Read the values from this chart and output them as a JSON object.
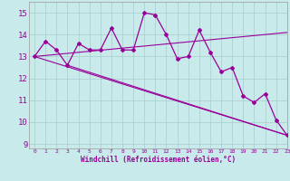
{
  "x": [
    0,
    1,
    2,
    3,
    4,
    5,
    6,
    7,
    8,
    9,
    10,
    11,
    12,
    13,
    14,
    15,
    16,
    17,
    18,
    19,
    20,
    21,
    22,
    23
  ],
  "y_main": [
    13.0,
    13.7,
    13.3,
    12.6,
    13.6,
    13.3,
    13.3,
    14.3,
    13.3,
    13.3,
    15.0,
    14.9,
    14.0,
    12.9,
    13.0,
    14.2,
    13.2,
    12.3,
    12.5,
    11.2,
    10.9,
    11.3,
    10.1,
    9.4
  ],
  "line_up": {
    "x0": 0,
    "y0": 13.0,
    "x1": 23,
    "y1": 14.1
  },
  "line_down1": {
    "x0": 0,
    "y0": 13.0,
    "x1": 23,
    "y1": 9.4
  },
  "line_down2": {
    "x0": 3,
    "y0": 12.6,
    "x1": 23,
    "y1": 9.4
  },
  "color": "#990099",
  "bg_color": "#c8eaea",
  "grid_color": "#a8cccc",
  "xlabel": "Windchill (Refroidissement éolien,°C)",
  "ylim": [
    8.8,
    15.5
  ],
  "xlim": [
    -0.5,
    23
  ],
  "yticks": [
    9,
    10,
    11,
    12,
    13,
    14,
    15
  ],
  "xticks": [
    0,
    1,
    2,
    3,
    4,
    5,
    6,
    7,
    8,
    9,
    10,
    11,
    12,
    13,
    14,
    15,
    16,
    17,
    18,
    19,
    20,
    21,
    22,
    23
  ]
}
